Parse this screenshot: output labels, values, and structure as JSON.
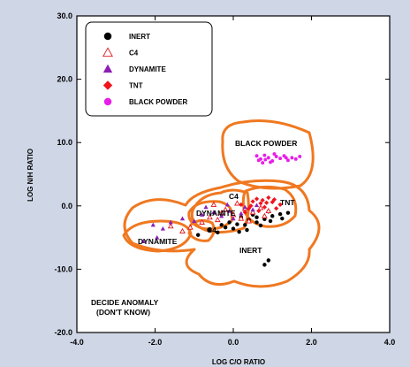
{
  "chart_data": {
    "type": "scatter",
    "xlabel": "LOG C/O RATIO",
    "ylabel": "LOG N/H RATIO",
    "xlim": [
      -4,
      4
    ],
    "ylim": [
      -20,
      30
    ],
    "xticks": [
      -4,
      -2,
      0,
      2,
      4
    ],
    "yticks": [
      -20,
      -10,
      0,
      10,
      20,
      30
    ],
    "xtick_labels": [
      "-4.0",
      "-2.0",
      "0.0",
      "2.0",
      "4.0"
    ],
    "ytick_labels": [
      "-20.0",
      "-10.0",
      "0.0",
      "10.0",
      "20.0",
      "30.0"
    ],
    "legend_position": "top-left",
    "series": [
      {
        "name": "INERT",
        "marker": "filled-circle",
        "color": "#000000",
        "points": [
          [
            -0.9,
            -4.6
          ],
          [
            -0.6,
            -3.8
          ],
          [
            -0.4,
            -4.2
          ],
          [
            -0.2,
            -3.4
          ],
          [
            0.0,
            -3.6
          ],
          [
            0.1,
            -2.9
          ],
          [
            0.3,
            -3.0
          ],
          [
            0.4,
            -2.2
          ],
          [
            0.6,
            -2.6
          ],
          [
            0.8,
            -2.1
          ],
          [
            1.0,
            -1.6
          ],
          [
            1.2,
            -1.3
          ],
          [
            1.4,
            -1.1
          ],
          [
            0.9,
            -0.9
          ],
          [
            0.2,
            -1.8
          ],
          [
            -0.1,
            -2.6
          ],
          [
            0.5,
            -1.4
          ],
          [
            0.7,
            -3.1
          ],
          [
            0.35,
            -3.8
          ],
          [
            0.95,
            -2.4
          ],
          [
            -0.3,
            -3.0
          ],
          [
            1.25,
            -2.0
          ],
          [
            0.9,
            -8.6
          ],
          [
            0.8,
            -9.3
          ],
          [
            0.15,
            -4.1
          ],
          [
            0.6,
            -1.8
          ]
        ]
      },
      {
        "name": "C4",
        "marker": "open-triangle",
        "color": "#e0141e",
        "points": [
          [
            -0.6,
            -1.8
          ],
          [
            -0.4,
            -2.2
          ],
          [
            -0.2,
            -0.6
          ],
          [
            0.0,
            -1.4
          ],
          [
            0.2,
            -2.0
          ],
          [
            0.3,
            -0.4
          ],
          [
            0.5,
            -1.0
          ],
          [
            0.7,
            -0.3
          ],
          [
            0.9,
            -0.8
          ],
          [
            -0.8,
            -2.6
          ],
          [
            -1.1,
            -3.4
          ],
          [
            -1.3,
            -4.0
          ],
          [
            -1.6,
            -3.2
          ],
          [
            -0.5,
            0.2
          ],
          [
            0.1,
            0.4
          ],
          [
            -0.3,
            -1.1
          ],
          [
            0.4,
            -2.4
          ],
          [
            0.8,
            -1.6
          ]
        ]
      },
      {
        "name": "DYNAMITE",
        "marker": "filled-triangle",
        "color": "#8c1eb4",
        "points": [
          [
            -1.3,
            -2.0
          ],
          [
            -1.0,
            -2.4
          ],
          [
            -0.8,
            -1.4
          ],
          [
            -0.5,
            -1.0
          ],
          [
            -0.3,
            -1.6
          ],
          [
            -0.1,
            -0.8
          ],
          [
            0.0,
            -2.0
          ],
          [
            0.2,
            -1.2
          ],
          [
            0.3,
            -0.2
          ],
          [
            0.5,
            -0.6
          ],
          [
            -1.6,
            -2.6
          ],
          [
            -1.8,
            -3.6
          ],
          [
            -1.95,
            -5.0
          ],
          [
            -2.3,
            -5.6
          ],
          [
            -2.05,
            -3.0
          ],
          [
            -0.7,
            -0.2
          ],
          [
            0.6,
            0.1
          ],
          [
            -0.15,
            0.2
          ]
        ]
      },
      {
        "name": "TNT",
        "marker": "filled-diamond",
        "color": "#f0141e",
        "points": [
          [
            0.2,
            0.2
          ],
          [
            0.4,
            -0.4
          ],
          [
            0.5,
            0.7
          ],
          [
            0.7,
            0.4
          ],
          [
            0.8,
            -0.2
          ],
          [
            1.0,
            0.6
          ],
          [
            1.1,
            -0.4
          ],
          [
            0.6,
            1.1
          ],
          [
            0.9,
            1.3
          ],
          [
            1.2,
            0.2
          ],
          [
            0.3,
            -1.0
          ],
          [
            0.45,
            0.0
          ],
          [
            0.75,
            0.9
          ],
          [
            1.05,
            1.0
          ],
          [
            0.65,
            -0.8
          ],
          [
            0.85,
            0.5
          ]
        ]
      },
      {
        "name": "BLACK POWDER",
        "marker": "filled-circle",
        "color": "#e81ee8",
        "points": [
          [
            0.6,
            7.9
          ],
          [
            0.7,
            7.4
          ],
          [
            0.8,
            8.0
          ],
          [
            0.9,
            7.6
          ],
          [
            1.0,
            7.1
          ],
          [
            1.1,
            7.8
          ],
          [
            1.2,
            7.5
          ],
          [
            1.3,
            7.9
          ],
          [
            1.4,
            7.2
          ],
          [
            1.5,
            7.6
          ],
          [
            1.6,
            7.4
          ],
          [
            1.7,
            7.8
          ],
          [
            0.75,
            6.8
          ],
          [
            0.65,
            7.2
          ],
          [
            1.05,
            8.2
          ],
          [
            1.35,
            7.6
          ],
          [
            0.95,
            6.9
          ],
          [
            0.82,
            7.3
          ]
        ]
      }
    ],
    "annotations": [
      "BLACK POWDER",
      "C4",
      "TNT",
      "DYNAMITE",
      "C4",
      "DYNAMITE",
      "INERT",
      "DECIDE ANOMALY",
      "(DON'T KNOW)"
    ]
  },
  "colors": {
    "boundary": "#f07820",
    "frame": "#000000",
    "background": "#cfd6e6",
    "plot_bg": "#ffffff"
  }
}
